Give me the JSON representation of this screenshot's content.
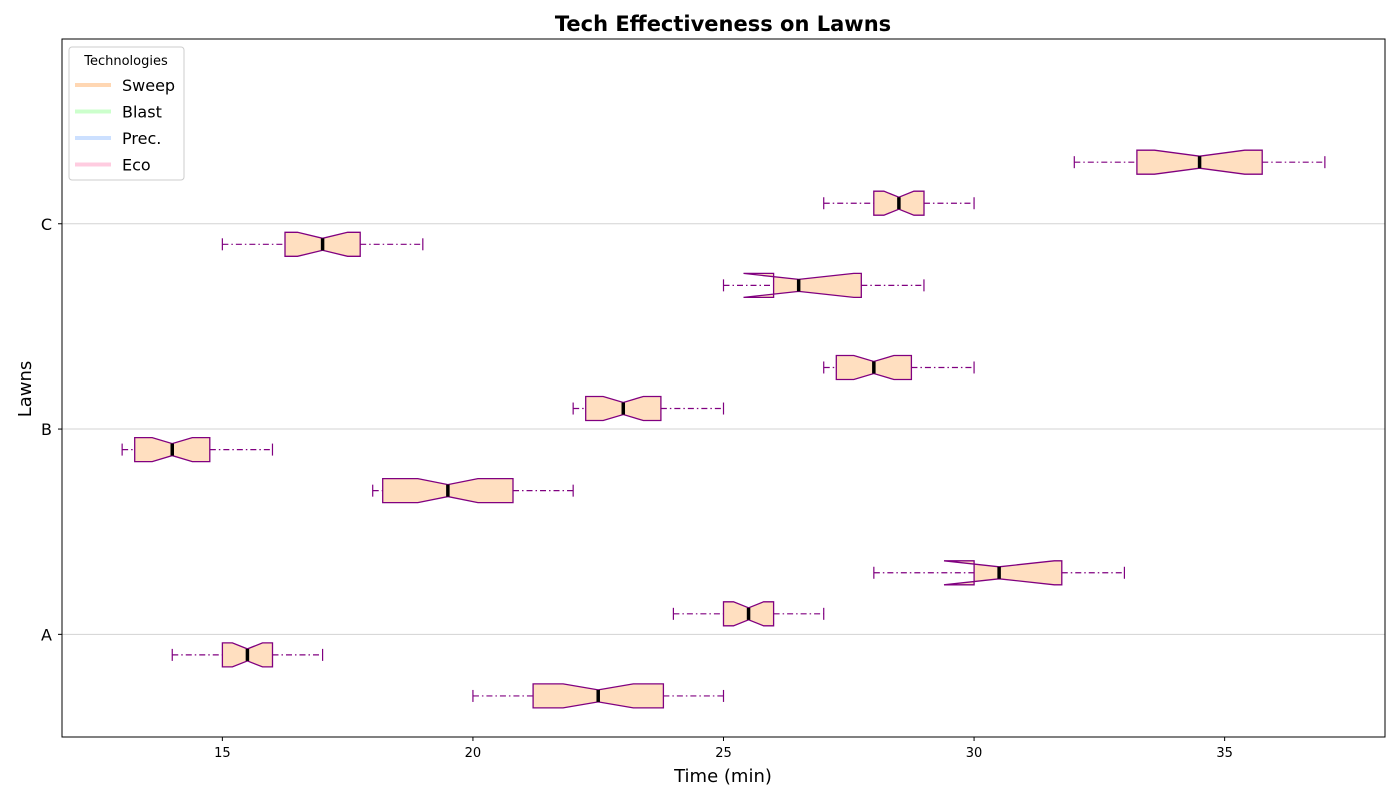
{
  "chart_data": {
    "type": "boxplot",
    "orientation": "horizontal",
    "notched": true,
    "title": "Tech Effectiveness on Lawns",
    "xlabel": "Time (min)",
    "ylabel": "Lawns",
    "xlim": [
      11.8,
      38.2
    ],
    "x_ticks": [
      15,
      20,
      25,
      30,
      35
    ],
    "categories": [
      "A",
      "B",
      "C"
    ],
    "grid": "horizontal lines at category ticks",
    "legend": {
      "title": "Technologies",
      "placement": "top-left",
      "entries": [
        {
          "name": "Sweep",
          "color": "#ffd7b3"
        },
        {
          "name": "Blast",
          "color": "#ccffcc"
        },
        {
          "name": "Prec.",
          "color": "#cce0ff"
        },
        {
          "name": "Eco",
          "color": "#ffcce0"
        }
      ]
    },
    "style": {
      "box_fill": "#ffdfc0",
      "box_edge": "#800080",
      "median_color": "#000000",
      "whisker_color": "#800080",
      "grid_color": "#d3d3d3"
    },
    "boxes": [
      {
        "category": "A",
        "offset": -0.3,
        "min": 20,
        "q1": 21.2,
        "median": 22.5,
        "q3": 23.8,
        "max": 25,
        "notch_low": 21.8,
        "notch_high": 23.2
      },
      {
        "category": "A",
        "offset": -0.1,
        "min": 14,
        "q1": 15.0,
        "median": 15.5,
        "q3": 16.0,
        "max": 17,
        "notch_low": 15.2,
        "notch_high": 15.8
      },
      {
        "category": "A",
        "offset": 0.1,
        "min": 24,
        "q1": 25.0,
        "median": 25.5,
        "q3": 26.0,
        "max": 27,
        "notch_low": 25.2,
        "notch_high": 25.8
      },
      {
        "category": "A",
        "offset": 0.3,
        "min": 28,
        "q1": 30.0,
        "median": 30.5,
        "q3": 31.75,
        "max": 33,
        "notch_low": 29.4,
        "notch_high": 31.6
      },
      {
        "category": "B",
        "offset": -0.3,
        "min": 18,
        "q1": 18.2,
        "median": 19.5,
        "q3": 20.8,
        "max": 22,
        "notch_low": 18.9,
        "notch_high": 20.1
      },
      {
        "category": "B",
        "offset": -0.1,
        "min": 13,
        "q1": 13.25,
        "median": 14.0,
        "q3": 14.75,
        "max": 16,
        "notch_low": 13.6,
        "notch_high": 14.4
      },
      {
        "category": "B",
        "offset": 0.1,
        "min": 22,
        "q1": 22.25,
        "median": 23.0,
        "q3": 23.75,
        "max": 25,
        "notch_low": 22.6,
        "notch_high": 23.4
      },
      {
        "category": "B",
        "offset": 0.3,
        "min": 27,
        "q1": 27.25,
        "median": 28.0,
        "q3": 28.75,
        "max": 30,
        "notch_low": 27.6,
        "notch_high": 28.4
      },
      {
        "category": "C",
        "offset": -0.3,
        "min": 25,
        "q1": 26.0,
        "median": 26.5,
        "q3": 27.75,
        "max": 29,
        "notch_low": 25.4,
        "notch_high": 27.6
      },
      {
        "category": "C",
        "offset": -0.1,
        "min": 15,
        "q1": 16.25,
        "median": 17.0,
        "q3": 17.75,
        "max": 19,
        "notch_low": 16.5,
        "notch_high": 17.5
      },
      {
        "category": "C",
        "offset": 0.1,
        "min": 27,
        "q1": 28.0,
        "median": 28.5,
        "q3": 29.0,
        "max": 30,
        "notch_low": 28.2,
        "notch_high": 28.8
      },
      {
        "category": "C",
        "offset": 0.3,
        "min": 32,
        "q1": 33.25,
        "median": 34.5,
        "q3": 35.75,
        "max": 37,
        "notch_low": 33.6,
        "notch_high": 35.4
      }
    ]
  }
}
